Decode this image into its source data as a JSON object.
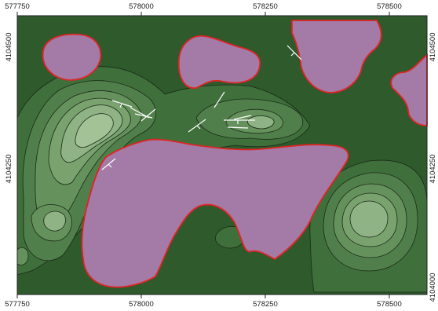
{
  "map": {
    "x_ticks": [
      {
        "label": "577750",
        "value": 577750
      },
      {
        "label": "578000",
        "value": 578000
      },
      {
        "label": "578250",
        "value": 578250
      },
      {
        "label": "578500",
        "value": 578500
      }
    ],
    "y_ticks": [
      {
        "label": "4104500",
        "value": 4104500
      },
      {
        "label": "4104250",
        "value": 4104250
      },
      {
        "label": "4104000",
        "value": 4104000
      }
    ],
    "colors": {
      "background": "#2e5a2c",
      "level_1": "#3f6f3b",
      "level_2": "#517f4b",
      "level_3": "#65915c",
      "level_4": "#7aa26f",
      "level_5": "#8fb384",
      "level_6": "#a3c397",
      "masked_area": "#a47aa6",
      "mask_outline": "#e02424",
      "contour_line": "#1a2a18",
      "structure_symbols": "#ffffff"
    }
  }
}
